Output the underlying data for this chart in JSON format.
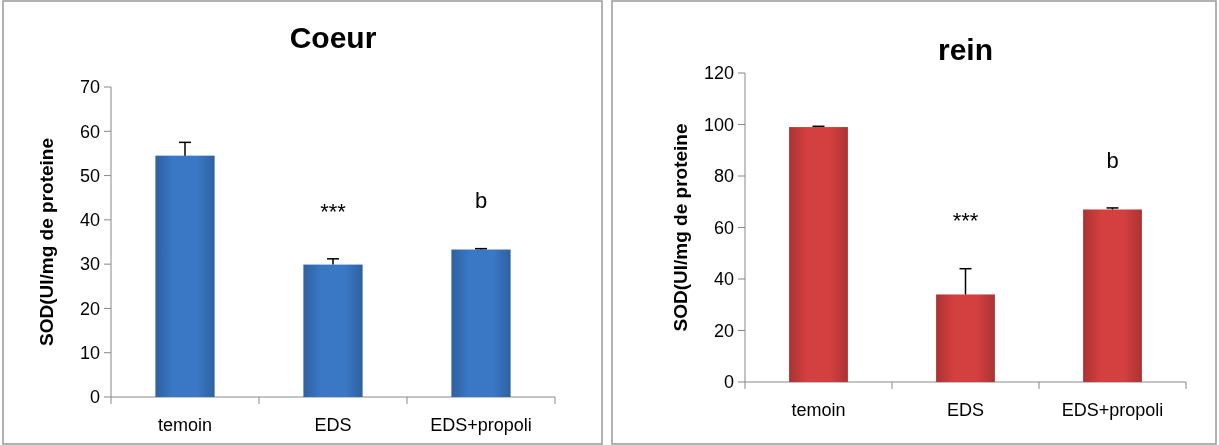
{
  "chart_data": [
    {
      "type": "bar",
      "title": "Coeur",
      "ylabel": "SOD(UI/mg de proteine",
      "categories": [
        "temoin",
        "EDS",
        "EDS+propoli"
      ],
      "values": [
        54.5,
        29.9,
        33.3
      ],
      "errors": [
        [
          54.5,
          57.5
        ],
        [
          29.9,
          31.2
        ],
        [
          33.3,
          33.5
        ]
      ],
      "color": "#3a78c6",
      "ylim": [
        0,
        70
      ],
      "yticks": [
        0,
        10,
        20,
        30,
        40,
        50,
        60,
        70
      ],
      "annotations": [
        "***",
        "b"
      ]
    },
    {
      "type": "bar",
      "title": "rein",
      "ylabel": "SOD(UI/mg de proteine",
      "categories": [
        "temoin",
        "EDS",
        "EDS+propoli"
      ],
      "values": [
        99,
        34,
        67
      ],
      "errors": [
        [
          99,
          99.3
        ],
        [
          34,
          44
        ],
        [
          67,
          67.6
        ]
      ],
      "color": "#d43f3f",
      "ylim": [
        0,
        120
      ],
      "yticks": [
        0,
        20,
        40,
        60,
        80,
        100,
        120
      ],
      "annotations": [
        "***",
        "b"
      ]
    }
  ]
}
